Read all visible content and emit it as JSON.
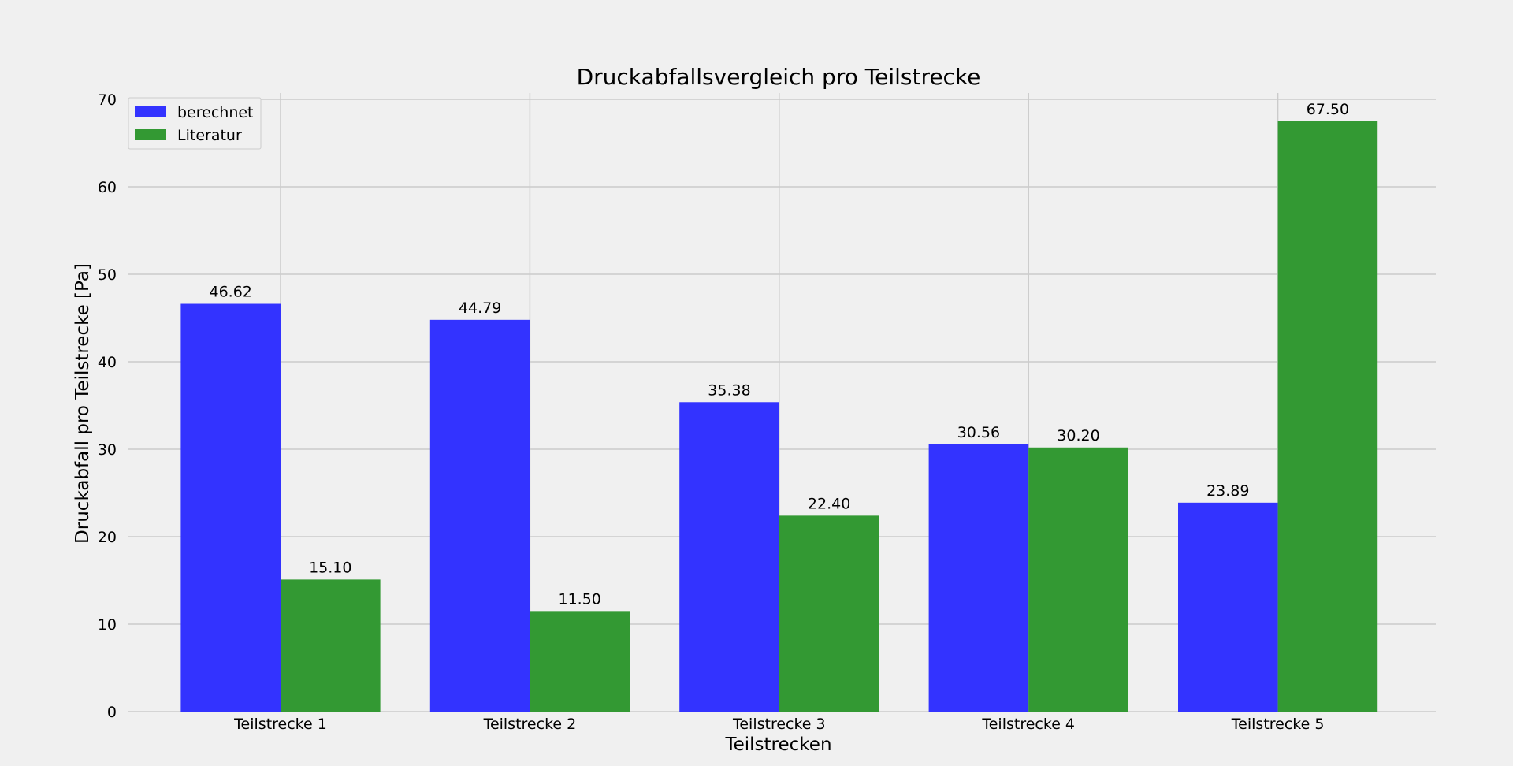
{
  "chart_data": {
    "type": "bar",
    "title": "Druckabfallsvergleich pro Teilstrecke",
    "xlabel": "Teilstrecken",
    "ylabel": "Druckabfall pro Teilstrecke [Pa]",
    "categories": [
      "Teilstrecke 1",
      "Teilstrecke 2",
      "Teilstrecke 3",
      "Teilstrecke 4",
      "Teilstrecke 5"
    ],
    "series": [
      {
        "name": "berechnet",
        "color": "#3333ff",
        "values": [
          46.62,
          44.79,
          35.38,
          30.56,
          23.89
        ]
      },
      {
        "name": "Literatur",
        "color": "#339933",
        "values": [
          15.1,
          11.5,
          22.4,
          30.2,
          67.5
        ]
      }
    ],
    "ylim": [
      0,
      70
    ],
    "yticks": [
      0,
      10,
      20,
      30,
      40,
      50,
      60,
      70
    ],
    "grid": true,
    "legend_position": "top-left",
    "data_label_format": "2 decimals"
  }
}
